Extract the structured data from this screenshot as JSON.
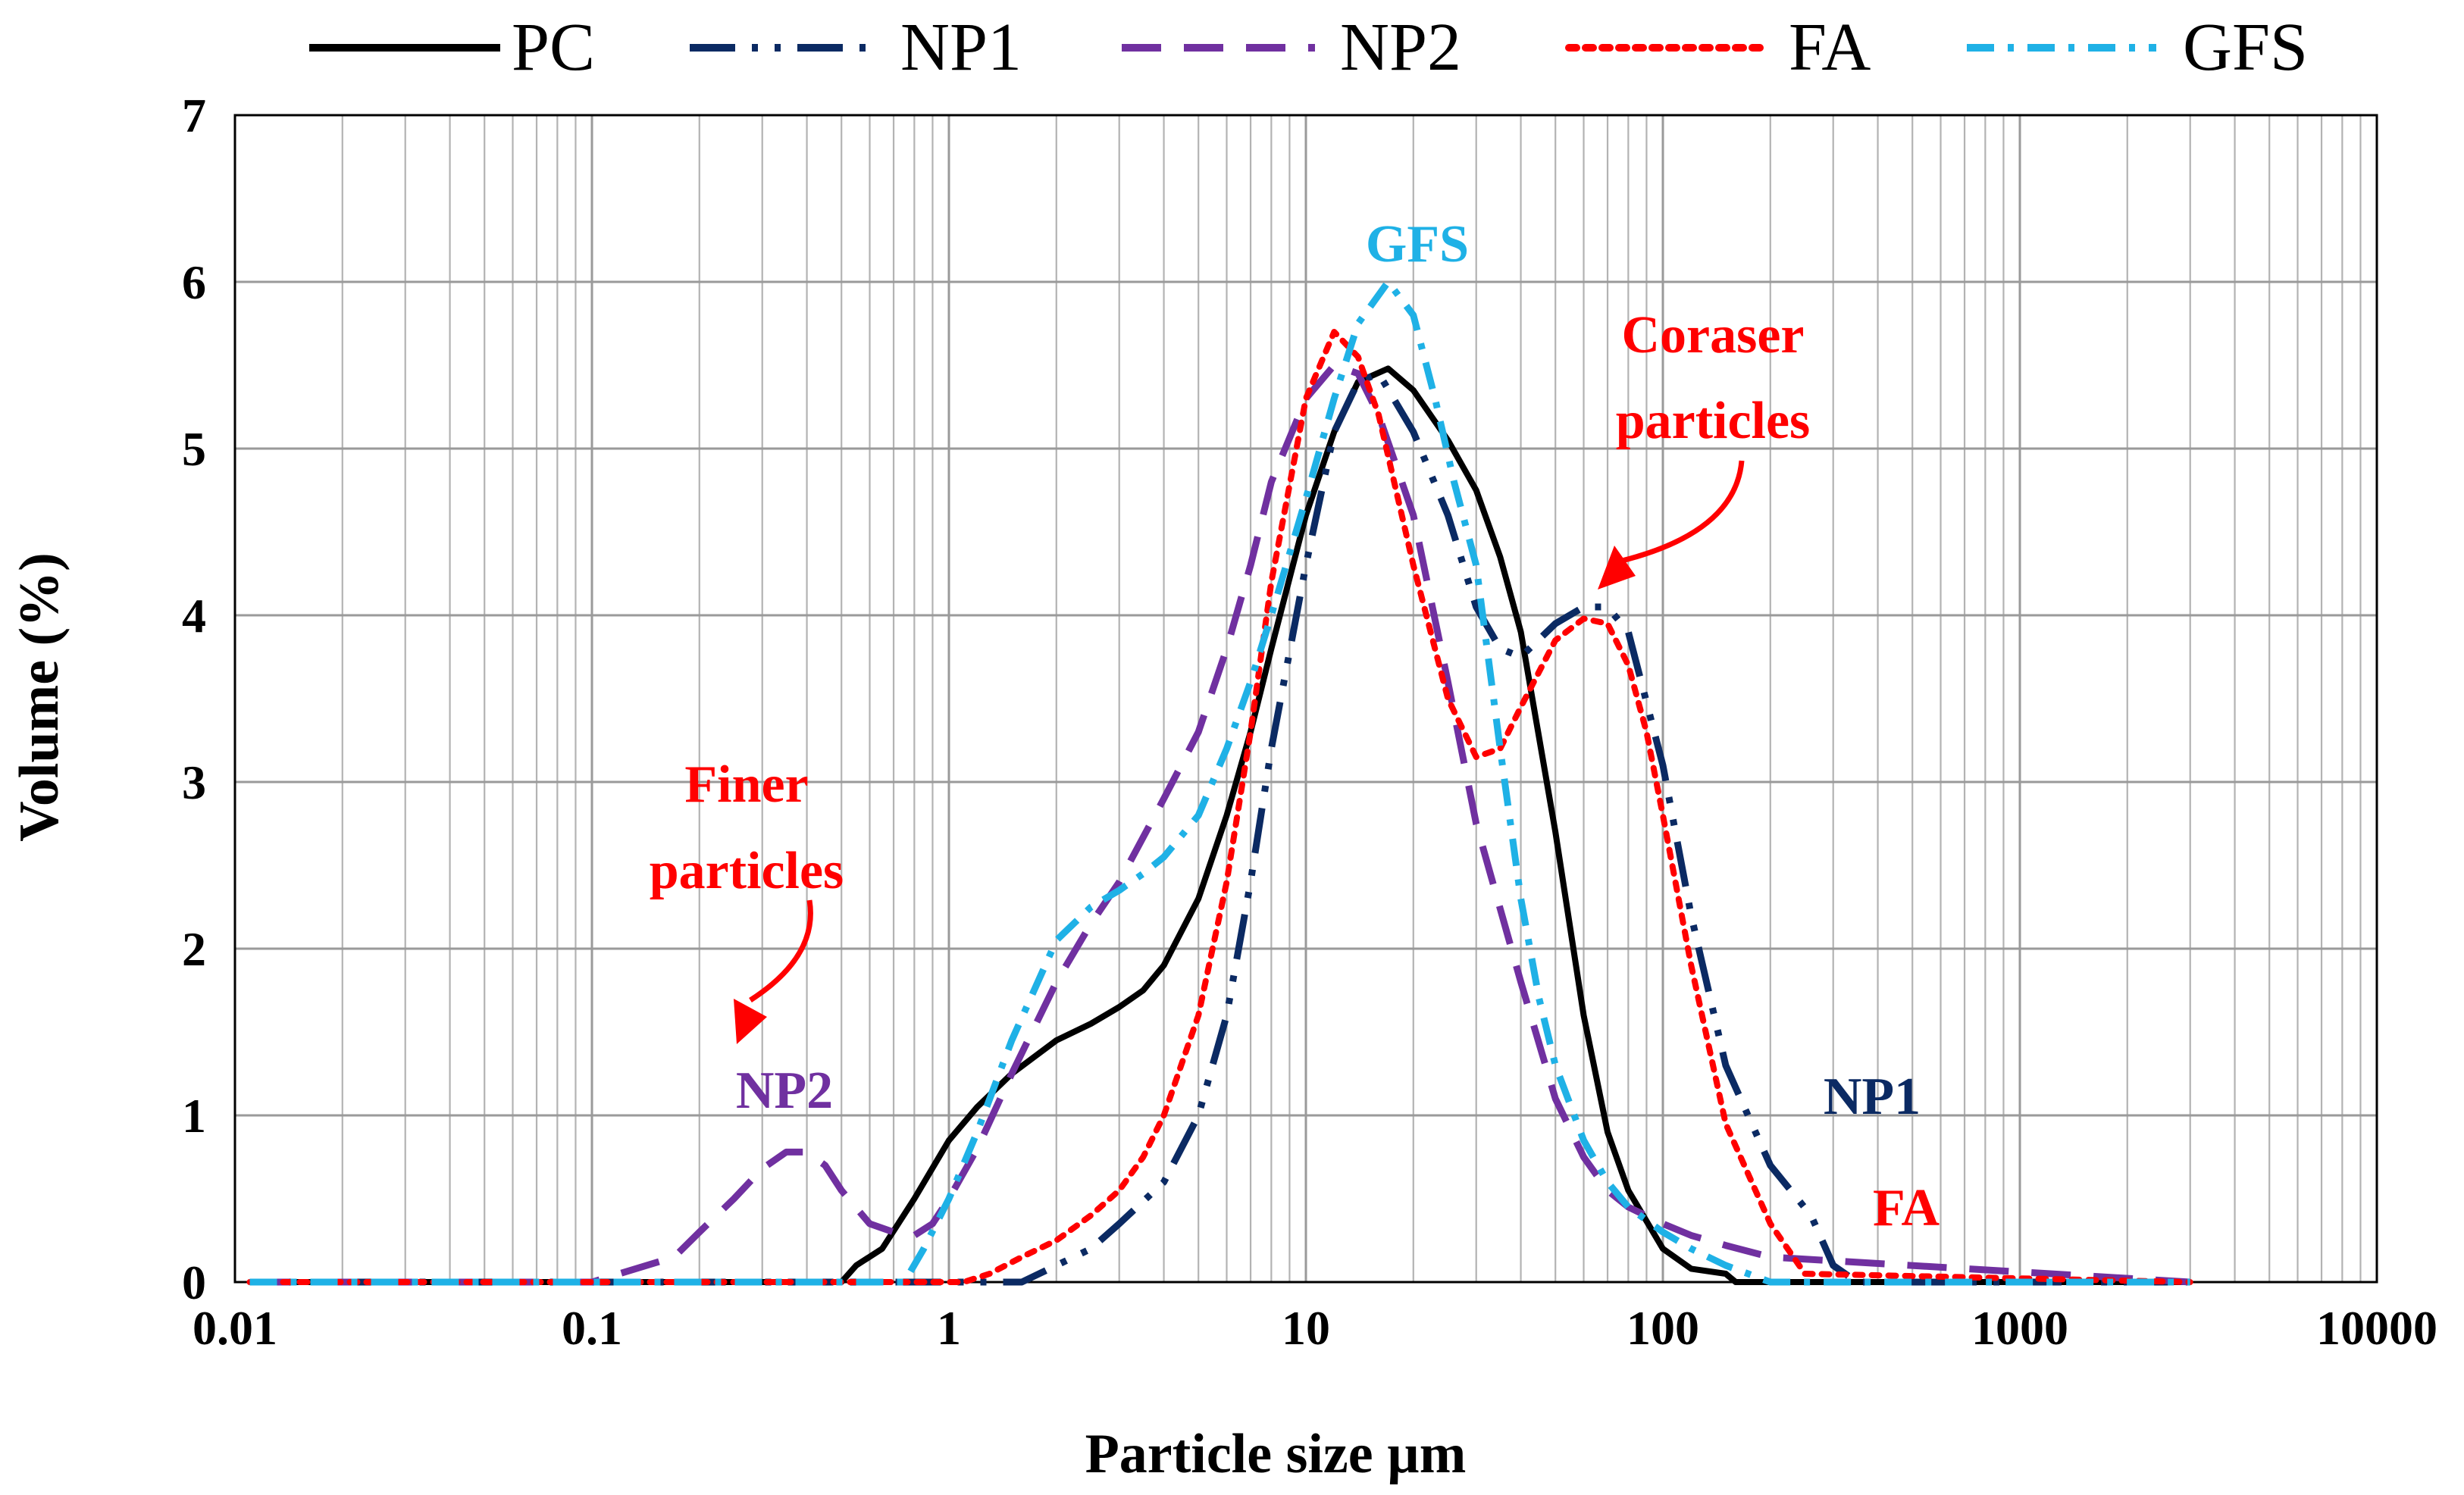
{
  "chart_data": {
    "type": "line",
    "title": "",
    "xlabel": "Particle size µm",
    "ylabel": "Volume (%)",
    "xscale": "log",
    "xlim": [
      0.01,
      10000
    ],
    "ylim": [
      0,
      7
    ],
    "xticks": [
      {
        "value": 0.01,
        "label": "0.01"
      },
      {
        "value": 0.1,
        "label": "0.1"
      },
      {
        "value": 1,
        "label": "1"
      },
      {
        "value": 10,
        "label": "10"
      },
      {
        "value": 100,
        "label": "100"
      },
      {
        "value": 1000,
        "label": "1000"
      },
      {
        "value": 10000,
        "label": "10000"
      }
    ],
    "yticks": [
      {
        "value": 0,
        "label": "0"
      },
      {
        "value": 1,
        "label": "1"
      },
      {
        "value": 2,
        "label": "2"
      },
      {
        "value": 3,
        "label": "3"
      },
      {
        "value": 4,
        "label": "4"
      },
      {
        "value": 5,
        "label": "5"
      },
      {
        "value": 6,
        "label": "6"
      },
      {
        "value": 7,
        "label": "7"
      }
    ],
    "grid": true,
    "legend_position": "top",
    "series": [
      {
        "name": "PC",
        "color": "#000000",
        "dash": "solid",
        "x": [
          0.011,
          0.5,
          0.55,
          0.65,
          0.8,
          1.0,
          1.2,
          1.5,
          2.0,
          2.5,
          3.0,
          3.5,
          4.0,
          5.0,
          6.0,
          7.0,
          8.0,
          10.0,
          12.0,
          14.0,
          17.0,
          20.0,
          25.0,
          30.0,
          35.0,
          40.0,
          50.0,
          60.0,
          70.0,
          80.0,
          100.0,
          120.0,
          150.0,
          160.0,
          180.0,
          3000.0
        ],
        "y": [
          0,
          0,
          0.1,
          0.2,
          0.5,
          0.85,
          1.05,
          1.25,
          1.45,
          1.55,
          1.65,
          1.75,
          1.9,
          2.3,
          2.8,
          3.3,
          3.8,
          4.6,
          5.1,
          5.4,
          5.48,
          5.35,
          5.05,
          4.75,
          4.35,
          3.9,
          2.7,
          1.6,
          0.9,
          0.55,
          0.2,
          0.08,
          0.05,
          0.0,
          0.0,
          0.0
        ]
      },
      {
        "name": "NP1",
        "color": "#0b2a63",
        "dash": "long-dash-dot",
        "x": [
          0.011,
          1.6,
          2.0,
          2.5,
          3.0,
          4.0,
          5.0,
          6.0,
          7.0,
          8.0,
          10.0,
          12.0,
          14.0,
          16.0,
          20.0,
          25.0,
          30.0,
          35.0,
          40.0,
          50.0,
          60.0,
          70.0,
          80.0,
          100.0,
          120.0,
          150.0,
          200.0,
          260.0,
          300.0,
          350.0,
          3000.0
        ],
        "y": [
          0,
          0,
          0.1,
          0.2,
          0.35,
          0.6,
          1.0,
          1.6,
          2.4,
          3.2,
          4.3,
          5.1,
          5.4,
          5.45,
          5.1,
          4.6,
          4.05,
          3.8,
          3.75,
          3.95,
          4.05,
          4.05,
          3.9,
          3.1,
          2.2,
          1.3,
          0.7,
          0.4,
          0.1,
          0.0,
          0.0
        ]
      },
      {
        "name": "NP2",
        "color": "#7030a0",
        "dash": "dash",
        "x": [
          0.011,
          0.1,
          0.17,
          0.2,
          0.25,
          0.3,
          0.35,
          0.4,
          0.45,
          0.5,
          0.6,
          0.7,
          0.8,
          0.9,
          1.0,
          1.2,
          1.5,
          2.0,
          2.5,
          3.0,
          4.0,
          5.0,
          6.0,
          7.0,
          8.0,
          10.0,
          12.0,
          14.0,
          16.0,
          20.0,
          25.0,
          30.0,
          40.0,
          50.0,
          60.0,
          70.0,
          80.0,
          100.0,
          120.0,
          150.0,
          200.0,
          3000.0
        ],
        "y": [
          0,
          0,
          0.15,
          0.3,
          0.5,
          0.68,
          0.78,
          0.78,
          0.7,
          0.55,
          0.35,
          0.3,
          0.28,
          0.35,
          0.5,
          0.8,
          1.25,
          1.8,
          2.15,
          2.4,
          2.9,
          3.3,
          3.8,
          4.3,
          4.8,
          5.3,
          5.5,
          5.45,
          5.2,
          4.6,
          3.6,
          2.75,
          1.8,
          1.1,
          0.75,
          0.55,
          0.45,
          0.35,
          0.28,
          0.22,
          0.15,
          0.0
        ]
      },
      {
        "name": "FA",
        "color": "#ff0000",
        "dash": "dot",
        "x": [
          0.011,
          1.1,
          1.3,
          1.6,
          2.0,
          2.5,
          3.0,
          3.5,
          4.0,
          5.0,
          6.0,
          7.0,
          8.0,
          10.0,
          12.0,
          14.0,
          16.0,
          20.0,
          25.0,
          30.0,
          35.0,
          40.0,
          50.0,
          60.0,
          70.0,
          80.0,
          90.0,
          100.0,
          120.0,
          150.0,
          200.0,
          250.0,
          3000.0
        ],
        "y": [
          0,
          0,
          0.05,
          0.15,
          0.25,
          0.4,
          0.55,
          0.75,
          1.0,
          1.6,
          2.4,
          3.3,
          4.2,
          5.3,
          5.7,
          5.55,
          5.2,
          4.3,
          3.5,
          3.15,
          3.2,
          3.45,
          3.85,
          3.98,
          3.95,
          3.7,
          3.3,
          2.8,
          1.9,
          0.95,
          0.35,
          0.05,
          0.0
        ]
      },
      {
        "name": "GFS",
        "color": "#1fb1e6",
        "dash": "dash-dot",
        "x": [
          0.011,
          0.75,
          0.85,
          1.0,
          1.2,
          1.5,
          2.0,
          2.5,
          3.0,
          3.5,
          4.0,
          5.0,
          6.0,
          7.0,
          8.0,
          10.0,
          12.0,
          14.0,
          17.0,
          20.0,
          23.0,
          26.0,
          30.0,
          35.0,
          40.0,
          45.0,
          50.0,
          60.0,
          70.0,
          80.0,
          100.0,
          120.0,
          150.0,
          200.0,
          3000.0
        ],
        "y": [
          0,
          0,
          0.2,
          0.5,
          0.9,
          1.45,
          2.05,
          2.25,
          2.35,
          2.45,
          2.55,
          2.8,
          3.2,
          3.6,
          4.0,
          4.7,
          5.3,
          5.75,
          6.0,
          5.8,
          5.3,
          4.8,
          4.3,
          3.2,
          2.3,
          1.7,
          1.3,
          0.85,
          0.6,
          0.45,
          0.3,
          0.2,
          0.1,
          0.0,
          0.0
        ]
      }
    ],
    "annotations": [
      {
        "text": "GFS",
        "color": "#1fb1e6"
      },
      {
        "text": "Coraser",
        "color": "#ff0000"
      },
      {
        "text": "particles",
        "color": "#ff0000"
      },
      {
        "text": "Finer",
        "color": "#ff0000"
      },
      {
        "text": "particles",
        "color": "#ff0000"
      },
      {
        "text": "NP2",
        "color": "#7030a0"
      },
      {
        "text": "NP1",
        "color": "#0b2a63"
      },
      {
        "text": "FA",
        "color": "#ff0000"
      }
    ]
  }
}
